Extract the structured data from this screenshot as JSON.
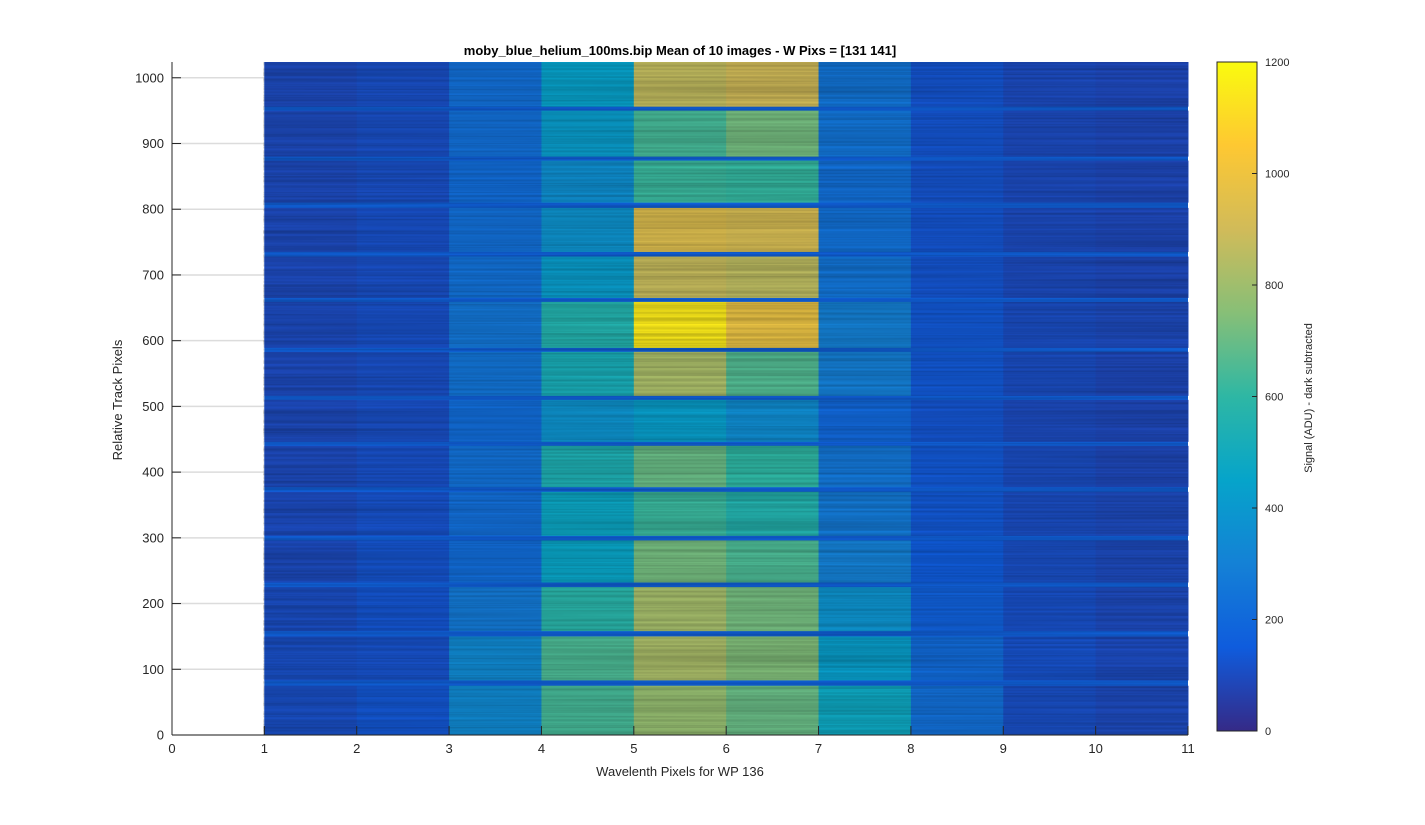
{
  "chart_data": {
    "type": "heatmap",
    "title": "moby_blue_helium_100ms.bip  Mean of 10 images - W Pixs = [131  141]",
    "xlabel": "Wavelenth Pixels for WP 136",
    "ylabel": "Relative Track Pixels",
    "colorbar_label": "Signal (ADU) - dark subtracted",
    "xlim": [
      0,
      11
    ],
    "ylim": [
      0,
      1024
    ],
    "clim": [
      0,
      1200
    ],
    "colormap": "parula",
    "grid": true,
    "x_ticks": [
      "0",
      "1",
      "2",
      "3",
      "4",
      "5",
      "6",
      "7",
      "8",
      "9",
      "10",
      "11"
    ],
    "y_ticks": [
      "0",
      "100",
      "200",
      "300",
      "400",
      "500",
      "600",
      "700",
      "800",
      "900",
      "1000"
    ],
    "colorbar_ticks": [
      "0",
      "200",
      "400",
      "600",
      "800",
      "1000",
      "1200"
    ],
    "columns": [
      1,
      2,
      3,
      4,
      5,
      6,
      7,
      8,
      9,
      10
    ],
    "gap_level": 170,
    "tracks": [
      {
        "y0": 0,
        "y1": 75,
        "values": [
          110,
          135,
          340,
          640,
          780,
          700,
          480,
          230,
          110,
          95
        ]
      },
      {
        "y0": 83,
        "y1": 150,
        "values": [
          110,
          120,
          340,
          650,
          820,
          740,
          430,
          210,
          120,
          100
        ]
      },
      {
        "y0": 158,
        "y1": 225,
        "values": [
          105,
          130,
          270,
          580,
          810,
          720,
          380,
          170,
          115,
          95
        ]
      },
      {
        "y0": 232,
        "y1": 296,
        "values": [
          100,
          125,
          220,
          460,
          720,
          650,
          300,
          150,
          110,
          95
        ]
      },
      {
        "y0": 303,
        "y1": 370,
        "values": [
          100,
          120,
          225,
          470,
          620,
          560,
          270,
          140,
          105,
          95
        ]
      },
      {
        "y0": 377,
        "y1": 440,
        "values": [
          95,
          115,
          240,
          540,
          700,
          600,
          260,
          140,
          105,
          90
        ]
      },
      {
        "y0": 446,
        "y1": 510,
        "values": [
          95,
          110,
          220,
          380,
          430,
          350,
          200,
          130,
          100,
          90
        ]
      },
      {
        "y0": 516,
        "y1": 583,
        "values": [
          95,
          110,
          250,
          520,
          820,
          660,
          290,
          140,
          105,
          90
        ]
      },
      {
        "y0": 589,
        "y1": 659,
        "values": [
          100,
          115,
          260,
          560,
          1150,
          980,
          300,
          140,
          105,
          95
        ]
      },
      {
        "y0": 665,
        "y1": 728,
        "values": [
          95,
          110,
          240,
          420,
          880,
          860,
          250,
          130,
          100,
          90
        ]
      },
      {
        "y0": 735,
        "y1": 802,
        "values": [
          95,
          115,
          230,
          380,
          940,
          920,
          240,
          130,
          100,
          90
        ]
      },
      {
        "y0": 810,
        "y1": 874,
        "values": [
          95,
          110,
          220,
          360,
          620,
          610,
          230,
          125,
          100,
          90
        ]
      },
      {
        "y0": 880,
        "y1": 950,
        "values": [
          95,
          110,
          230,
          420,
          640,
          720,
          250,
          130,
          100,
          90
        ]
      },
      {
        "y0": 956,
        "y1": 1024,
        "values": [
          95,
          110,
          230,
          440,
          870,
          900,
          250,
          130,
          100,
          90
        ]
      }
    ]
  }
}
